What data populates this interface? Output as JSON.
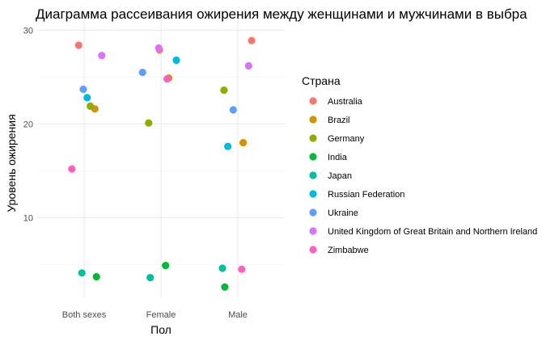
{
  "chart_data": {
    "type": "scatter",
    "title": "Диаграмма рассеивания ожирения между женщинами и мужчинами в выбра",
    "xlabel": "Пол",
    "ylabel": "Уровень ожирения",
    "categories": [
      "Both sexes",
      "Female",
      "Male"
    ],
    "ylim": [
      1.5,
      31.5
    ],
    "yticks": [
      10,
      20,
      30
    ],
    "grid": true,
    "legend": {
      "title": "Страна",
      "position": "right"
    },
    "series": [
      {
        "name": "Australia",
        "color": "#F8766D",
        "points": [
          {
            "x": "Both sexes",
            "jitter": -0.07,
            "y": 28.4
          },
          {
            "x": "Female",
            "jitter": -0.02,
            "y": 27.9
          },
          {
            "x": "Male",
            "jitter": 0.18,
            "y": 28.9
          }
        ]
      },
      {
        "name": "Brazil",
        "color": "#D39200",
        "points": [
          {
            "x": "Both sexes",
            "jitter": 0.14,
            "y": 21.6
          },
          {
            "x": "Female",
            "jitter": 0.1,
            "y": 24.9
          },
          {
            "x": "Male",
            "jitter": 0.07,
            "y": 18.0
          }
        ]
      },
      {
        "name": "Germany",
        "color": "#93AA00",
        "points": [
          {
            "x": "Both sexes",
            "jitter": 0.08,
            "y": 21.9
          },
          {
            "x": "Female",
            "jitter": -0.16,
            "y": 20.1
          },
          {
            "x": "Male",
            "jitter": -0.18,
            "y": 23.6
          }
        ]
      },
      {
        "name": "India",
        "color": "#00BA38",
        "points": [
          {
            "x": "Both sexes",
            "jitter": 0.16,
            "y": 3.7
          },
          {
            "x": "Female",
            "jitter": 0.06,
            "y": 4.9
          },
          {
            "x": "Male",
            "jitter": -0.17,
            "y": 2.6
          }
        ]
      },
      {
        "name": "Japan",
        "color": "#00C19F",
        "points": [
          {
            "x": "Both sexes",
            "jitter": -0.03,
            "y": 4.1
          },
          {
            "x": "Female",
            "jitter": -0.14,
            "y": 3.6
          },
          {
            "x": "Male",
            "jitter": -0.2,
            "y": 4.6
          }
        ]
      },
      {
        "name": "Russian Federation",
        "color": "#00B9E3",
        "points": [
          {
            "x": "Both sexes",
            "jitter": 0.04,
            "y": 22.8
          },
          {
            "x": "Female",
            "jitter": 0.2,
            "y": 26.8
          },
          {
            "x": "Male",
            "jitter": -0.13,
            "y": 17.6
          }
        ]
      },
      {
        "name": "Ukraine",
        "color": "#619CFF",
        "points": [
          {
            "x": "Both sexes",
            "jitter": -0.01,
            "y": 23.7
          },
          {
            "x": "Female",
            "jitter": -0.24,
            "y": 25.5
          },
          {
            "x": "Male",
            "jitter": -0.06,
            "y": 21.5
          }
        ]
      },
      {
        "name": "United Kingdom of Great Britain and Northern Ireland",
        "color": "#DB72FB",
        "points": [
          {
            "x": "Both sexes",
            "jitter": 0.23,
            "y": 27.3
          },
          {
            "x": "Female",
            "jitter": -0.03,
            "y": 28.1
          },
          {
            "x": "Male",
            "jitter": 0.14,
            "y": 26.2
          }
        ]
      },
      {
        "name": "Zimbabwe",
        "color": "#FF61C3",
        "points": [
          {
            "x": "Both sexes",
            "jitter": -0.16,
            "y": 15.2
          },
          {
            "x": "Female",
            "jitter": 0.08,
            "y": 24.8
          },
          {
            "x": "Male",
            "jitter": 0.05,
            "y": 4.5
          }
        ]
      }
    ]
  }
}
